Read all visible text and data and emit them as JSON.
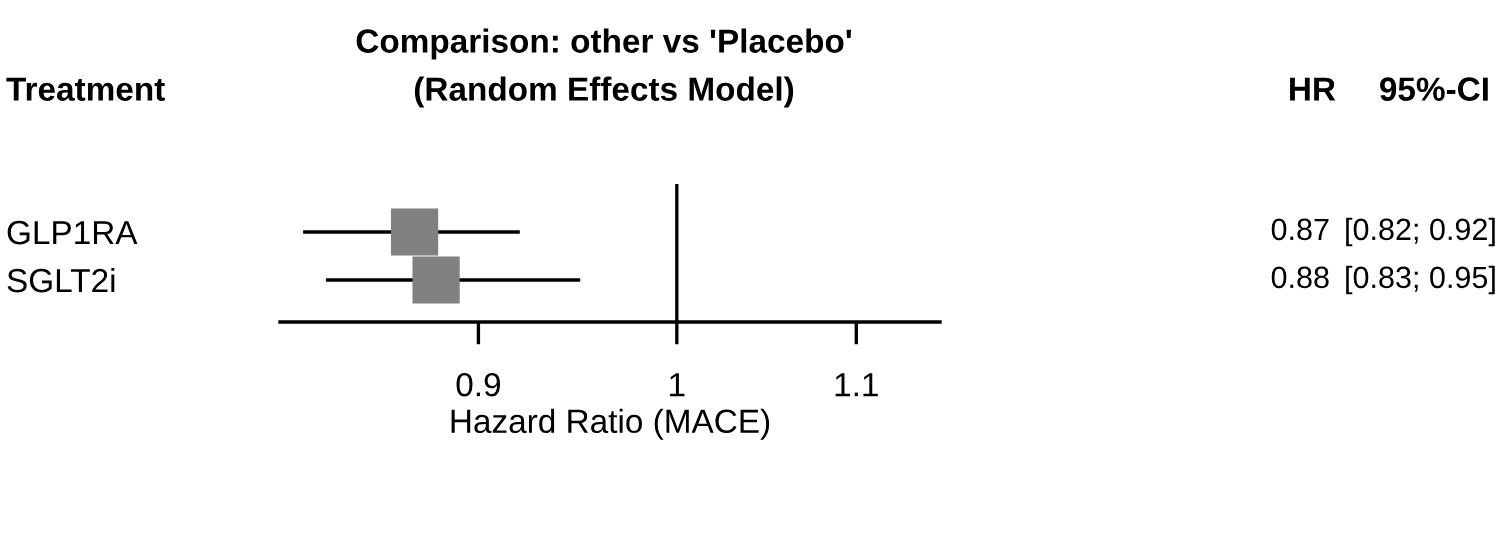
{
  "chart_data": {
    "type": "scatter",
    "title": "Comparison: other vs 'Placebo'",
    "subtitle": "(Random Effects Model)",
    "xlabel": "Hazard Ratio (MACE)",
    "annotations": [
      "Treatment",
      "HR",
      "95%-CI"
    ],
    "categories": [
      "GLP1RA",
      "SGLT2i"
    ],
    "values": [
      0.87,
      0.88
    ],
    "errors": [
      [
        0.82,
        0.92
      ],
      [
        0.83,
        0.95
      ]
    ],
    "value_labels": [
      [
        "0.87",
        "[0.82; 0.92]"
      ],
      [
        "0.88",
        "[0.83; 0.95]"
      ]
    ],
    "color": "#808080",
    "orientation": "horizontal",
    "marker": "square",
    "log": "x",
    "xlim": [
      0.81,
      1.15
    ],
    "xticks": [
      0.9,
      1,
      1.1
    ],
    "ref_lines": [
      {
        "axis": "x",
        "value": 1,
        "color": "#000000"
      }
    ],
    "grid": false,
    "legend": false
  }
}
